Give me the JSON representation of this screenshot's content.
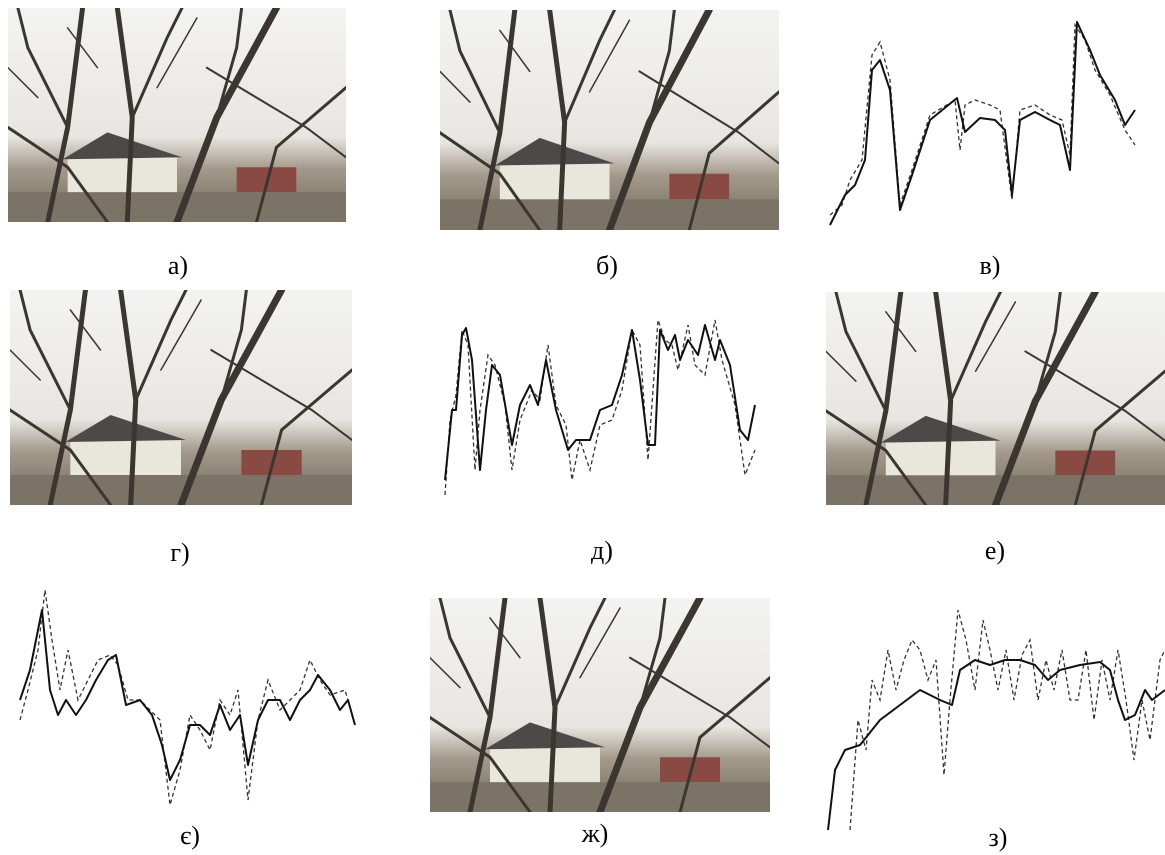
{
  "panels": [
    {
      "label": "а)"
    },
    {
      "label": "б)"
    },
    {
      "label": "в)"
    },
    {
      "label": "г)"
    },
    {
      "label": "д)"
    },
    {
      "label": "е)"
    },
    {
      "label": "є)"
    },
    {
      "label": "ж)"
    },
    {
      "label": "з)"
    }
  ]
}
